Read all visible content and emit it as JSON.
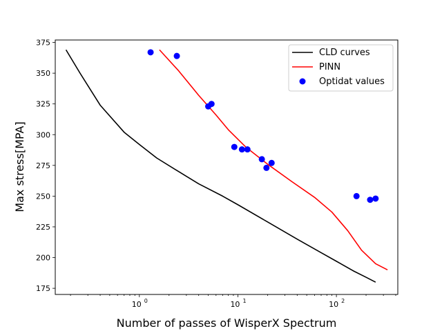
{
  "chart_data": {
    "type": "line",
    "title": "",
    "xlabel": "Number of passes of WisperX Spectrum",
    "ylabel": "Max stress[MPA]",
    "xscale": "log",
    "xlim": [
      0.14,
      420
    ],
    "ylim": [
      170,
      377
    ],
    "x_ticks": [
      {
        "value": 1,
        "label": "10",
        "exp": "0"
      },
      {
        "value": 10,
        "label": "10",
        "exp": "1"
      },
      {
        "value": 100,
        "label": "10",
        "exp": "2"
      }
    ],
    "y_ticks": [
      175,
      200,
      225,
      250,
      275,
      300,
      325,
      350,
      375
    ],
    "grid": false,
    "legend": {
      "position": "top-right",
      "entries": [
        "CLD curves",
        "PINN",
        "Optidat values"
      ]
    },
    "series": [
      {
        "name": "CLD curves",
        "kind": "line",
        "color": "#000000",
        "points": [
          [
            0.18,
            369
          ],
          [
            0.25,
            350
          ],
          [
            0.4,
            324
          ],
          [
            0.7,
            302
          ],
          [
            1.0,
            292
          ],
          [
            1.5,
            281
          ],
          [
            2.5,
            270
          ],
          [
            4,
            260
          ],
          [
            7,
            250
          ],
          [
            10,
            243
          ],
          [
            20,
            229
          ],
          [
            40,
            215
          ],
          [
            70,
            204
          ],
          [
            100,
            197
          ],
          [
            150,
            189
          ],
          [
            200,
            184
          ],
          [
            250,
            180
          ]
        ]
      },
      {
        "name": "PINN",
        "kind": "line",
        "color": "#ff0000",
        "points": [
          [
            1.6,
            369
          ],
          [
            2.5,
            352
          ],
          [
            4,
            332
          ],
          [
            6,
            316
          ],
          [
            8,
            304
          ],
          [
            12,
            290
          ],
          [
            20,
            276
          ],
          [
            35,
            262
          ],
          [
            60,
            249
          ],
          [
            90,
            237
          ],
          [
            130,
            222
          ],
          [
            180,
            206
          ],
          [
            250,
            195
          ],
          [
            330,
            190
          ]
        ]
      },
      {
        "name": "Optidat values",
        "kind": "scatter",
        "color": "#0000ff",
        "points": [
          [
            1.3,
            367
          ],
          [
            2.4,
            364
          ],
          [
            5.0,
            323
          ],
          [
            5.4,
            325
          ],
          [
            9.2,
            290
          ],
          [
            11,
            288
          ],
          [
            12.5,
            288
          ],
          [
            17.5,
            280
          ],
          [
            19.5,
            273
          ],
          [
            22,
            277
          ],
          [
            160,
            250
          ],
          [
            220,
            247
          ],
          [
            250,
            248
          ]
        ]
      }
    ]
  }
}
